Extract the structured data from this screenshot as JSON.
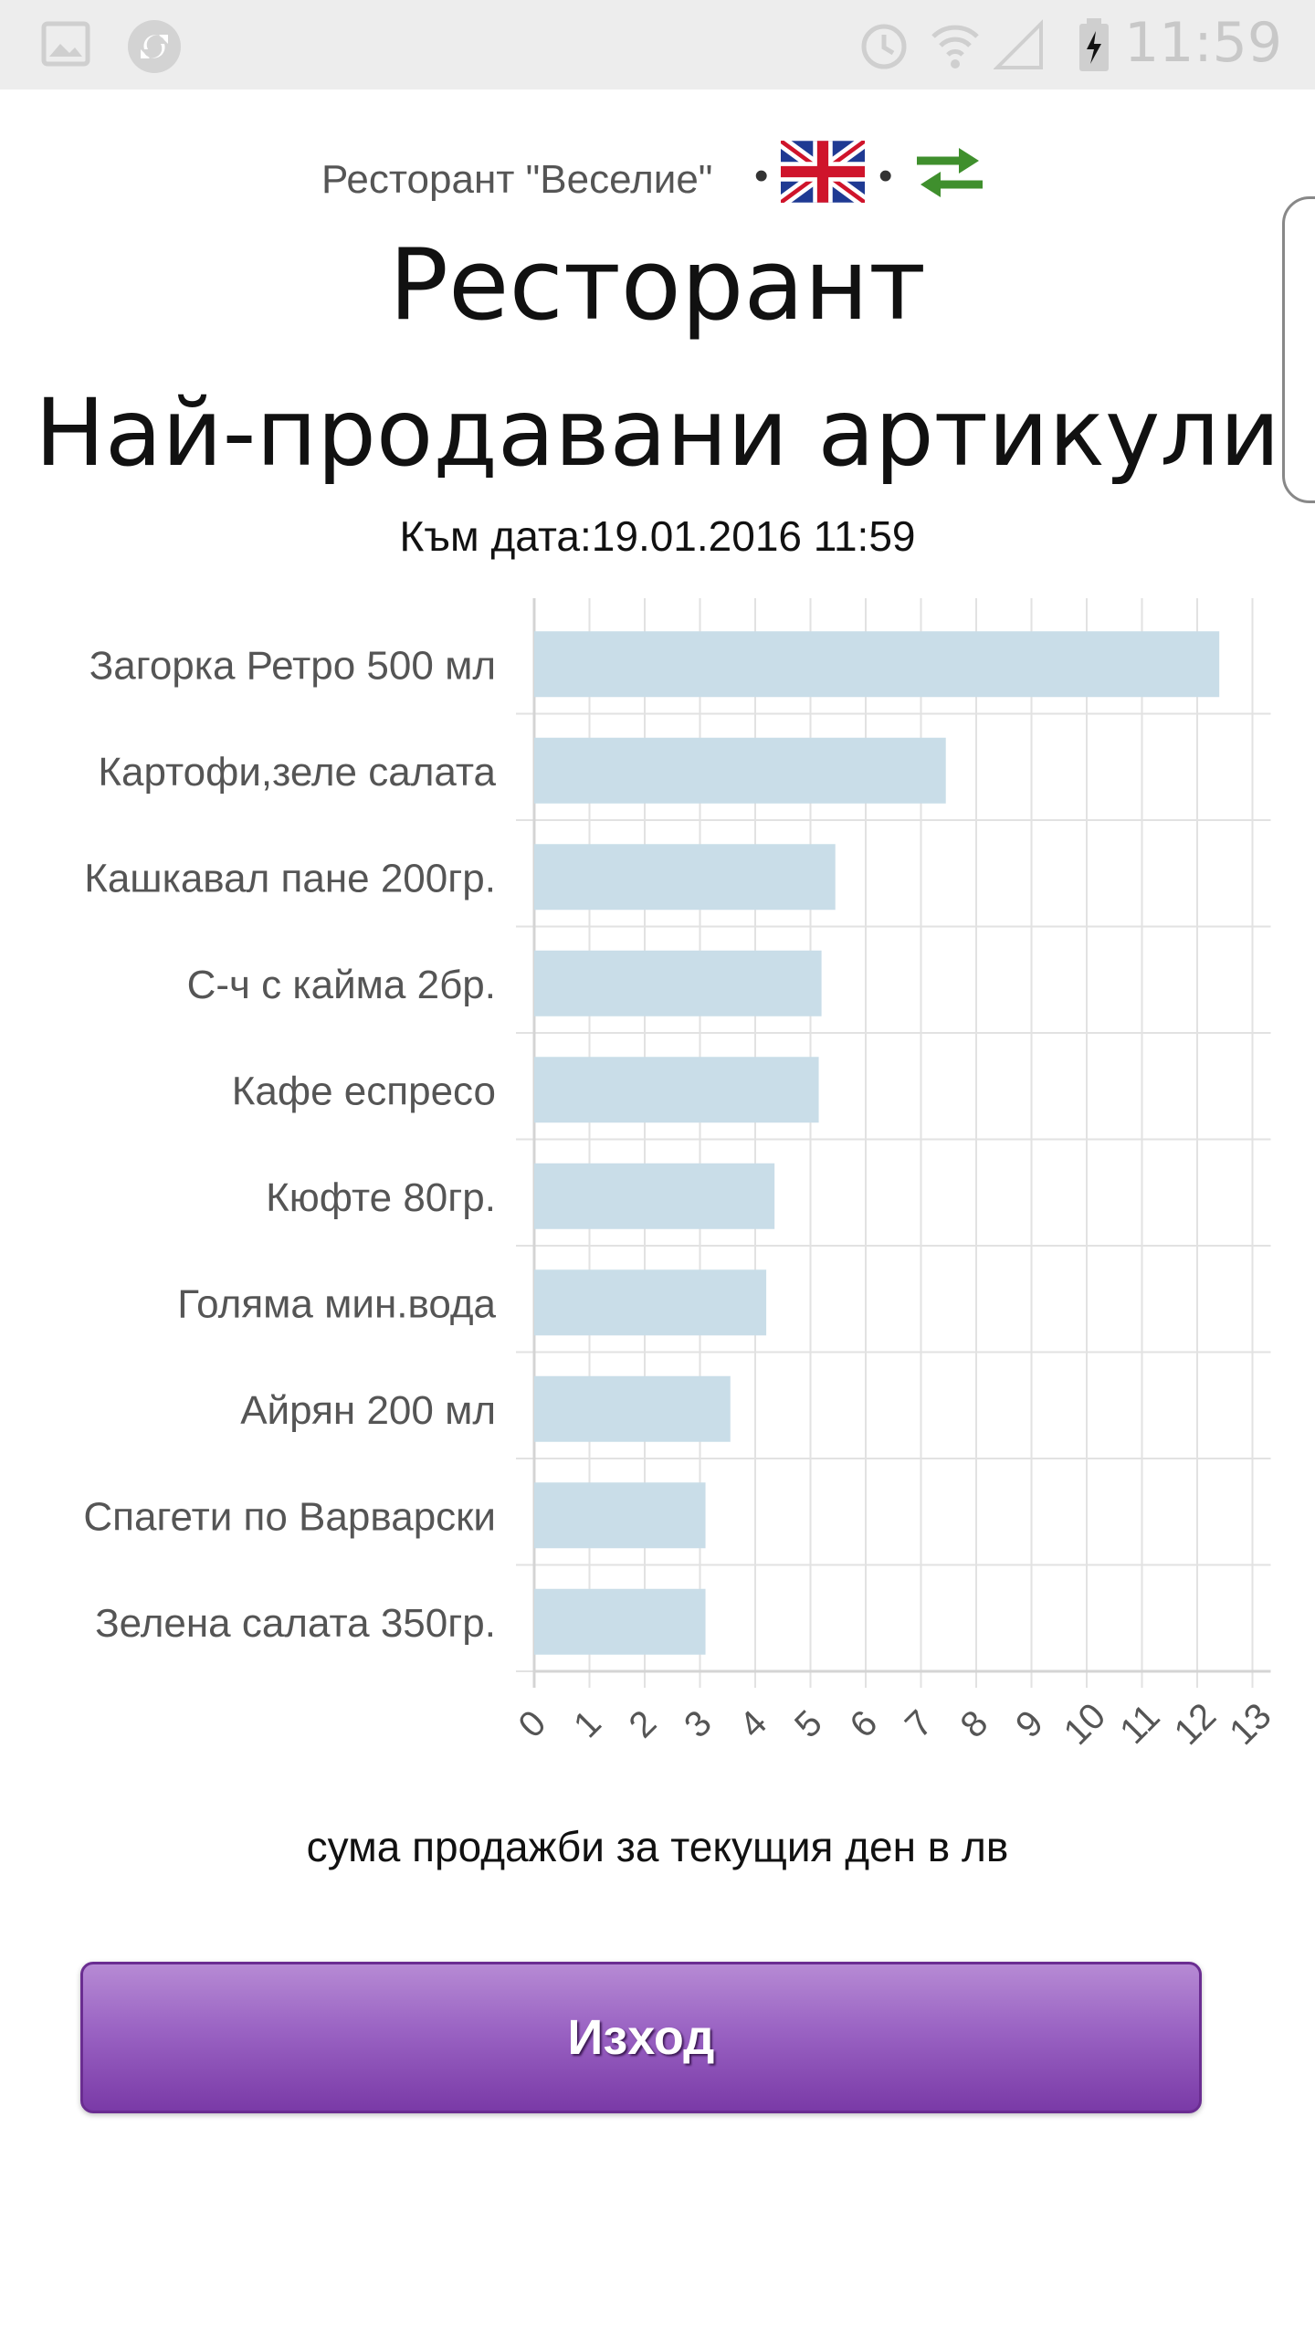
{
  "status_bar": {
    "time": "11:59",
    "left_icons": [
      "image-icon",
      "sync-icon"
    ],
    "right_icons": [
      "alarm-icon",
      "wifi-icon",
      "signal-icon",
      "battery-charging-icon"
    ]
  },
  "header": {
    "restaurant_name": "Ресторант \"Веселие\"",
    "separator": "•",
    "language_icon": "uk-flag-icon",
    "swap_icon": "swap-arrows-icon"
  },
  "title_line1": "Ресторант",
  "title_line2": "Най-продавани артикули",
  "date": {
    "label": "Към дата:",
    "value": "19.01.2016 11:59"
  },
  "chart_data": {
    "type": "bar",
    "orientation": "horizontal",
    "categories": [
      "Загорка Ретро 500 мл",
      "Картофи,зеле салата",
      "Кашкавал пане 200гр.",
      "С-ч с кайма 2бр.",
      "Кафе еспресо",
      "Кюфте 80гр.",
      "Голяма мин.вода",
      "Айрян 200 мл",
      "Спагети по Варварски",
      "Зелена салата 350гр."
    ],
    "values": [
      12.4,
      7.45,
      5.45,
      5.2,
      5.15,
      4.35,
      4.2,
      3.55,
      3.1,
      3.1
    ],
    "xlim": [
      0,
      13
    ],
    "x_ticks": [
      "0",
      "1",
      "2",
      "3",
      "4",
      "5",
      "6",
      "7",
      "8",
      "9",
      "10",
      "11",
      "12",
      "13"
    ],
    "grid": true,
    "bar_color": "#c9dde8",
    "xlabel": "сума продажби за текущия ден в лв"
  },
  "exit_button_label": "Изход",
  "colors": {
    "button_purple": "#8a4cb8",
    "bar": "#c9dde8"
  }
}
